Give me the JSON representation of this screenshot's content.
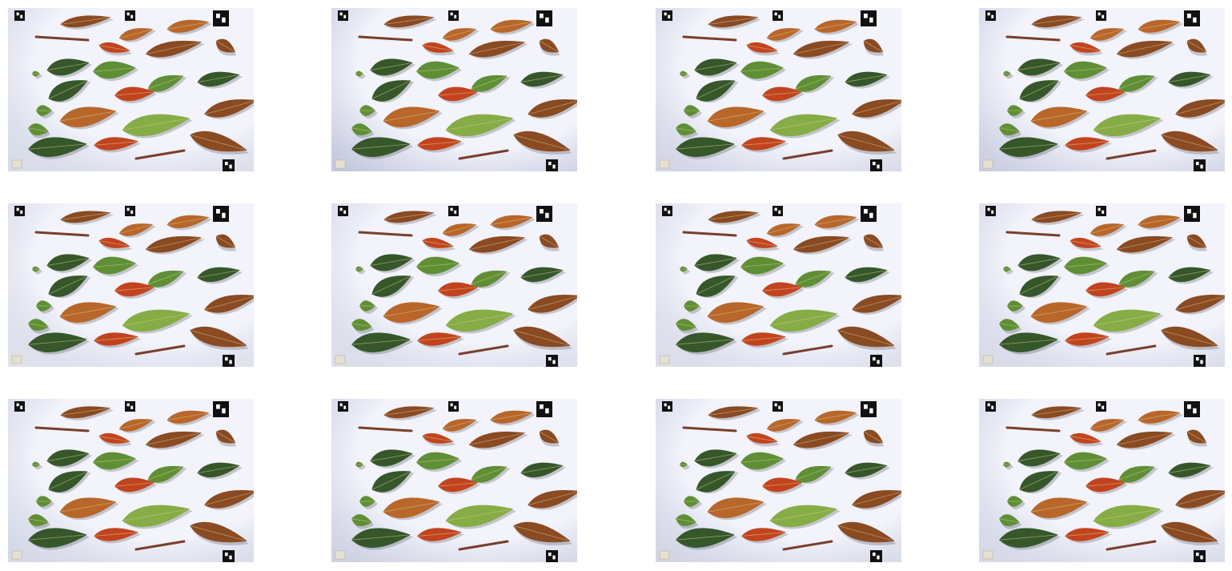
{
  "figure": {
    "rows": 3,
    "cols": 4,
    "panel_count": 12,
    "subject": "leaf-specimens-on-light-background",
    "colors": {
      "background": "#ffffff",
      "board_light": "#f2f3fb",
      "board_shade": "#b9bed6",
      "leaf_green_dark": "#35572a",
      "leaf_green": "#5f8f35",
      "leaf_green_light": "#86ad45",
      "leaf_orange": "#b8662a",
      "leaf_brown": "#8a4a22",
      "leaf_red": "#c2441e",
      "twig": "#7a3e2a",
      "marker": "#111111"
    },
    "panels": [
      {
        "shade": 0.25
      },
      {
        "shade": 0.55
      },
      {
        "shade": 0.35
      },
      {
        "shade": 0.45
      },
      {
        "shade": 0.15
      },
      {
        "shade": 0.2
      },
      {
        "shade": 0.2
      },
      {
        "shade": 0.25
      },
      {
        "shade": 0.3
      },
      {
        "shade": 0.4
      },
      {
        "shade": 0.35
      },
      {
        "shade": 0.3
      }
    ]
  }
}
